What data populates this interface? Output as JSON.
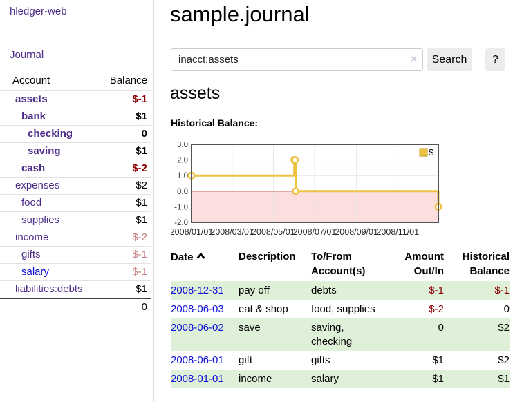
{
  "colors": {
    "link_purple": "#4d2c88",
    "link_blue": "#0f10d8",
    "negative": "#8b0000",
    "negative_dim": "#c57f7f",
    "row_stripe": "#dff0d8",
    "button_bg": "#ececec"
  },
  "app": {
    "title": "hledger-web",
    "nav_journal": "Journal"
  },
  "page": {
    "title": "sample.journal"
  },
  "search": {
    "value": "inacct:assets",
    "clear_icon": "×",
    "search_label": "Search",
    "help_label": "?"
  },
  "sidebar": {
    "header": {
      "account": "Account",
      "balance": "Balance"
    },
    "accounts": [
      {
        "name": "assets",
        "depth": 1,
        "bold": true,
        "balance": "$-1"
      },
      {
        "name": "bank",
        "depth": 2,
        "bold": true,
        "balance": "$1"
      },
      {
        "name": "checking",
        "depth": 3,
        "bold": true,
        "balance": "0"
      },
      {
        "name": "saving",
        "depth": 3,
        "bold": true,
        "balance": "$1"
      },
      {
        "name": "cash",
        "depth": 2,
        "bold": true,
        "balance": "$-2"
      },
      {
        "name": "expenses",
        "depth": 1,
        "bold": false,
        "balance": "$2"
      },
      {
        "name": "food",
        "depth": 2,
        "bold": false,
        "balance": "$1"
      },
      {
        "name": "supplies",
        "depth": 2,
        "bold": false,
        "balance": "$1"
      },
      {
        "name": "income",
        "depth": 1,
        "bold": false,
        "balance": "$-2",
        "dim": true
      },
      {
        "name": "gifts",
        "depth": 2,
        "bold": false,
        "balance": "$-1",
        "dim": true
      },
      {
        "name": "salary",
        "depth": 2,
        "bold": false,
        "balance": "$-1",
        "dim": true,
        "link_color": "blue"
      },
      {
        "name": "liabilities:debts",
        "depth": 1,
        "bold": false,
        "balance": "$1"
      }
    ],
    "total": "0"
  },
  "register": {
    "heading": "assets",
    "chart_title": "Historical Balance:"
  },
  "chart_data": {
    "type": "line",
    "title": "Historical Balance",
    "step": true,
    "grid": true,
    "legend": [
      "$"
    ],
    "legend_position": "top-right",
    "series": [
      {
        "name": "$",
        "color": "#edc240",
        "points": [
          {
            "date": "2008-01-01",
            "value": 1
          },
          {
            "date": "2008-06-01",
            "value": 2
          },
          {
            "date": "2008-06-02",
            "value": 2
          },
          {
            "date": "2008-06-03",
            "value": 0
          },
          {
            "date": "2008-12-31",
            "value": -1
          }
        ]
      }
    ],
    "x_ticks": [
      "2008/01/01",
      "2008/03/01",
      "2008/05/01",
      "2008/07/01",
      "2008/09/01",
      "2008/11/01"
    ],
    "y_ticks": [
      3.0,
      2.0,
      1.0,
      0.0,
      -1.0,
      -2.0
    ],
    "ylim": [
      -2,
      3
    ],
    "x_range": [
      "2008-01-01",
      "2008-12-31"
    ],
    "zero_line_color": "#8b0000",
    "negative_region_fill": "#fcdede",
    "grid_line_color": "#e6e6e6",
    "plot_border_color": "#545454"
  },
  "table": {
    "headers": {
      "date": "Date",
      "description": "Description",
      "tofrom": "To/From Account(s)",
      "amount": "Amount Out/In",
      "balance": "Historical Balance"
    },
    "rows": [
      {
        "date": "2008-12-31",
        "description": "pay off",
        "accounts": "debts",
        "amount": "$-1",
        "balance": "$-1"
      },
      {
        "date": "2008-06-03",
        "description": "eat & shop",
        "accounts": "food, supplies",
        "amount": "$-2",
        "balance": "0"
      },
      {
        "date": "2008-06-02",
        "description": "save",
        "accounts": "saving, checking",
        "amount": "0",
        "balance": "$2"
      },
      {
        "date": "2008-06-01",
        "description": "gift",
        "accounts": "gifts",
        "amount": "$1",
        "balance": "$2"
      },
      {
        "date": "2008-01-01",
        "description": "income",
        "accounts": "salary",
        "amount": "$1",
        "balance": "$1"
      }
    ]
  }
}
